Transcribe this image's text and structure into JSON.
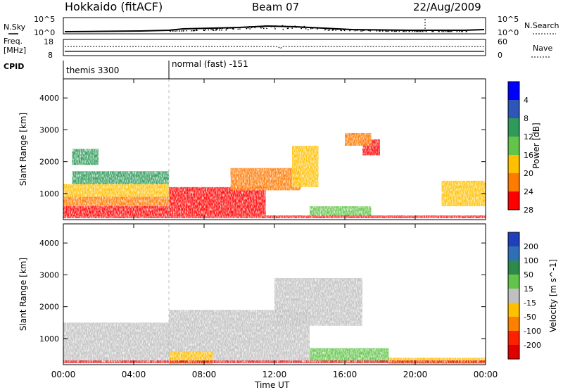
{
  "header": {
    "radar": "Hokkaido (fitACF)",
    "beam": "Beam 07",
    "date": "22/Aug/2009"
  },
  "status": {
    "nsky_label": "N.Sky",
    "nsearch_label": "N.Search",
    "freq_label_1": "Freq.",
    "freq_label_2": "[MHz]",
    "nave_label": "Nave",
    "cpid_label": "CPID",
    "cpid_segments": [
      {
        "start": 0.0,
        "end": 6.0,
        "name": "themis 3300"
      },
      {
        "start": 6.0,
        "end": 24.0,
        "name": "normal (fast) -151"
      }
    ],
    "noise_ticks_left": [
      "10^5",
      "10^0"
    ],
    "noise_ticks_right": [
      "10^5",
      "10^0"
    ],
    "freq_ticks": [
      "18",
      "8"
    ],
    "nave_ticks": [
      "60",
      "0"
    ]
  },
  "chart_data": [
    {
      "type": "heatmap",
      "name": "power-panel",
      "ylabel": "Slant Range [km]",
      "xlabel": "Time UT",
      "x_ticks": [
        "00:00",
        "04:00",
        "08:00",
        "12:00",
        "16:00",
        "20:00",
        "00:00"
      ],
      "xlim_hours": [
        0,
        24
      ],
      "ylim": [
        180,
        4600
      ],
      "y_ticks": [
        1000,
        2000,
        3000,
        4000
      ],
      "colorbar": {
        "label": "Power [dB]",
        "ticks": [
          "4",
          "8",
          "12",
          "16",
          "20",
          "24",
          "28"
        ],
        "levels": [
          "#0000ff",
          "#2d56b8",
          "#2f9a5a",
          "#63c44a",
          "#ffc000",
          "#ff7a00",
          "#ff0000"
        ]
      },
      "echo_regions": [
        {
          "t": [
            0.0,
            6.0
          ],
          "r": [
            300,
            600
          ],
          "level": 6
        },
        {
          "t": [
            0.0,
            6.0
          ],
          "r": [
            600,
            900
          ],
          "level": 5
        },
        {
          "t": [
            0.0,
            6.0
          ],
          "r": [
            900,
            1300
          ],
          "level": 4
        },
        {
          "t": [
            0.5,
            6.0
          ],
          "r": [
            1300,
            1700
          ],
          "level": 2
        },
        {
          "t": [
            0.5,
            2.0
          ],
          "r": [
            1900,
            2400
          ],
          "level": 2
        },
        {
          "t": [
            6.0,
            11.5
          ],
          "r": [
            300,
            1200
          ],
          "level": 6
        },
        {
          "t": [
            9.5,
            13.5
          ],
          "r": [
            1100,
            1800
          ],
          "level": 5
        },
        {
          "t": [
            13.0,
            14.5
          ],
          "r": [
            1200,
            2500
          ],
          "level": 4
        },
        {
          "t": [
            14.0,
            17.5
          ],
          "r": [
            300,
            600
          ],
          "level": 3
        },
        {
          "t": [
            17.0,
            18.0
          ],
          "r": [
            2200,
            2700
          ],
          "level": 6
        },
        {
          "t": [
            16.0,
            17.5
          ],
          "r": [
            2500,
            2900
          ],
          "level": 5
        },
        {
          "t": [
            21.5,
            24.0
          ],
          "r": [
            600,
            1400
          ],
          "level": 4
        }
      ]
    },
    {
      "type": "heatmap",
      "name": "velocity-panel",
      "ylabel": "Slant Range [km]",
      "xlabel": "Time UT",
      "x_ticks": [
        "00:00",
        "04:00",
        "08:00",
        "12:00",
        "16:00",
        "20:00",
        "00:00"
      ],
      "xlim_hours": [
        0,
        24
      ],
      "ylim": [
        180,
        4600
      ],
      "y_ticks": [
        1000,
        2000,
        3000,
        4000
      ],
      "colorbar": {
        "label": "Velocity [m s^-1]",
        "ticks": [
          "200",
          "100",
          "50",
          "15",
          "-15",
          "-50",
          "-100",
          "-200"
        ],
        "levels": [
          "#1f3fbf",
          "#2f6fb5",
          "#2e8a4a",
          "#63c44a",
          "#c0c0c0",
          "#ffc000",
          "#ff8000",
          "#ff2000",
          "#e00000"
        ]
      },
      "echo_regions": [
        {
          "t": [
            0.0,
            6.0
          ],
          "r": [
            300,
            1500
          ],
          "level": "-15..15"
        },
        {
          "t": [
            6.0,
            14.0
          ],
          "r": [
            300,
            1900
          ],
          "level": "-15..15"
        },
        {
          "t": [
            6.0,
            8.5
          ],
          "r": [
            200,
            600
          ],
          "level": "-50..-15"
        },
        {
          "t": [
            14.0,
            18.5
          ],
          "r": [
            300,
            700
          ],
          "level": "15..50"
        },
        {
          "t": [
            12.0,
            17.0
          ],
          "r": [
            1400,
            2900
          ],
          "level": "-15..15"
        },
        {
          "t": [
            18.5,
            24.0
          ],
          "r": [
            200,
            400
          ],
          "level": "-50..-15"
        }
      ]
    }
  ]
}
